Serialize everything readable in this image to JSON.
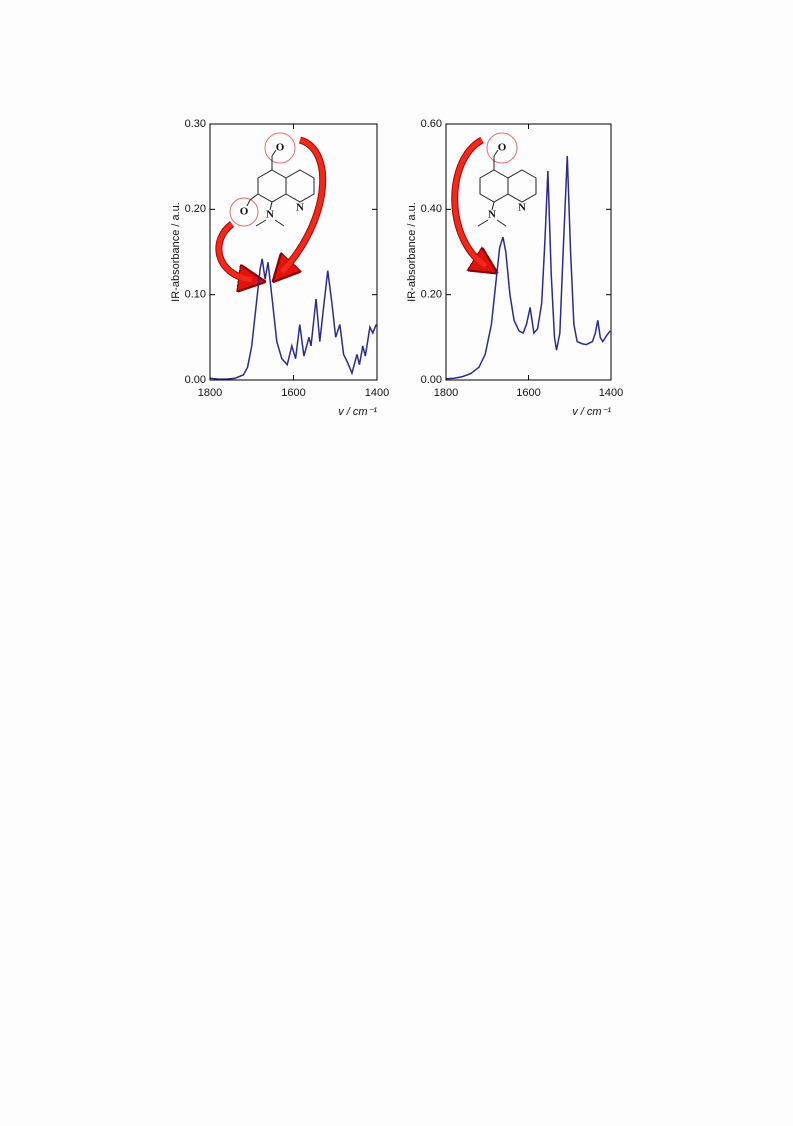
{
  "chart_data": [
    {
      "type": "line",
      "y_label": "IR-absorbance / a.u.",
      "x_label": "v / cm⁻¹",
      "annotations": [
        "O",
        "O",
        "N",
        "N"
      ],
      "xlim": [
        1800,
        1400
      ],
      "xticks": [
        1800,
        1600,
        1400
      ],
      "ylim": [
        0,
        0.3
      ],
      "yticks": [
        {
          "value": 0,
          "label": "0.00"
        },
        {
          "value": 0.1,
          "label": "0.10"
        },
        {
          "value": 0.2,
          "label": "0.20"
        },
        {
          "value": 0.3,
          "label": "0.30"
        }
      ],
      "x": [
        1800,
        1780,
        1760,
        1740,
        1720,
        1710,
        1700,
        1690,
        1680,
        1675,
        1668,
        1661,
        1650,
        1640,
        1628,
        1615,
        1604,
        1595,
        1585,
        1575,
        1563,
        1558,
        1546,
        1537,
        1528,
        1518,
        1508,
        1499,
        1489,
        1480,
        1470,
        1460,
        1448,
        1442,
        1434,
        1428,
        1417,
        1410,
        1402
      ],
      "series": [
        {
          "color": "#2b2b8f",
          "values": [
            0.002,
            0.001,
            0.001,
            0.002,
            0.006,
            0.015,
            0.04,
            0.085,
            0.13,
            0.142,
            0.118,
            0.138,
            0.09,
            0.045,
            0.025,
            0.018,
            0.04,
            0.025,
            0.065,
            0.028,
            0.05,
            0.04,
            0.095,
            0.045,
            0.085,
            0.128,
            0.09,
            0.05,
            0.065,
            0.03,
            0.02,
            0.008,
            0.03,
            0.018,
            0.04,
            0.028,
            0.062,
            0.055,
            0.065
          ]
        }
      ]
    },
    {
      "type": "line",
      "y_label": "IR-absorbance / a.u.",
      "x_label": "v / cm⁻¹",
      "annotations": [
        "O",
        "N",
        "N"
      ],
      "xlim": [
        1800,
        1400
      ],
      "xticks": [
        1800,
        1600,
        1400
      ],
      "ylim": [
        0,
        0.6
      ],
      "yticks": [
        {
          "value": 0,
          "label": "0.00"
        },
        {
          "value": 0.2,
          "label": "0.20"
        },
        {
          "value": 0.4,
          "label": "0.40"
        },
        {
          "value": 0.6,
          "label": "0.60"
        }
      ],
      "x": [
        1800,
        1780,
        1760,
        1740,
        1720,
        1705,
        1690,
        1680,
        1670,
        1662,
        1655,
        1645,
        1635,
        1623,
        1613,
        1605,
        1596,
        1587,
        1578,
        1568,
        1560,
        1553,
        1545,
        1537,
        1532,
        1524,
        1516,
        1506,
        1498,
        1490,
        1482,
        1470,
        1460,
        1445,
        1438,
        1432,
        1426,
        1420,
        1410,
        1402
      ],
      "series": [
        {
          "color": "#2b2b8f",
          "values": [
            0.003,
            0.004,
            0.008,
            0.015,
            0.03,
            0.06,
            0.13,
            0.22,
            0.31,
            0.335,
            0.3,
            0.2,
            0.14,
            0.115,
            0.11,
            0.13,
            0.17,
            0.11,
            0.12,
            0.18,
            0.33,
            0.49,
            0.25,
            0.1,
            0.07,
            0.11,
            0.3,
            0.525,
            0.3,
            0.13,
            0.09,
            0.085,
            0.083,
            0.09,
            0.11,
            0.14,
            0.1,
            0.09,
            0.105,
            0.115
          ]
        }
      ]
    }
  ]
}
